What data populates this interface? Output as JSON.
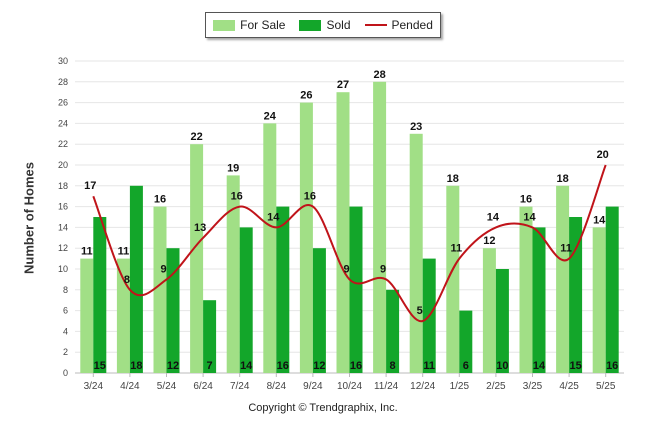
{
  "legend": {
    "for_sale": "For Sale",
    "sold": "Sold",
    "pended": "Pended"
  },
  "colors": {
    "for_sale": "#a1df86",
    "sold": "#13a62a",
    "pended": "#c0141a",
    "grid": "#e6e6e6"
  },
  "copyright": "Copyright © Trendgraphix, Inc.",
  "chart_data": {
    "type": "bar",
    "title": "",
    "xlabel": "",
    "ylabel": "Number of Homes",
    "ylim": [
      0,
      30
    ],
    "yticks": [
      0,
      2,
      4,
      6,
      8,
      10,
      12,
      14,
      16,
      18,
      20,
      22,
      24,
      26,
      28,
      30
    ],
    "grid": true,
    "legend_position": "top-center",
    "categories": [
      "3/24",
      "4/24",
      "5/24",
      "6/24",
      "7/24",
      "8/24",
      "9/24",
      "10/24",
      "11/24",
      "12/24",
      "1/25",
      "2/25",
      "3/25",
      "4/25",
      "5/25"
    ],
    "series": [
      {
        "name": "For Sale",
        "kind": "bar",
        "values": [
          11,
          11,
          16,
          22,
          19,
          24,
          26,
          27,
          28,
          23,
          18,
          12,
          16,
          18,
          14
        ]
      },
      {
        "name": "Sold",
        "kind": "bar",
        "values": [
          15,
          18,
          12,
          7,
          14,
          16,
          12,
          16,
          8,
          11,
          6,
          10,
          14,
          15,
          16
        ]
      },
      {
        "name": "Pended",
        "kind": "line",
        "values": [
          17,
          8,
          9,
          13,
          16,
          14,
          16,
          9,
          9,
          5,
          11,
          14,
          14,
          11,
          20
        ]
      }
    ]
  }
}
